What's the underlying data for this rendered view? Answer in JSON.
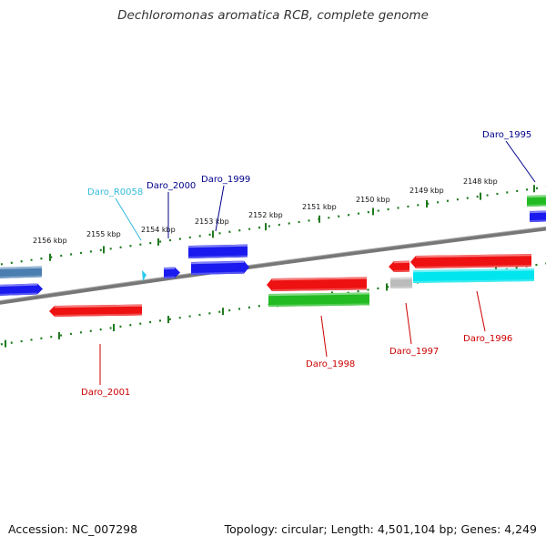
{
  "title": "Dechloromonas aromatica RCB, complete genome",
  "footer": {
    "accession": "Accession: NC_007298",
    "summary": "Topology: circular; Length: 4,501,104 bp; Genes: 4,249"
  },
  "colors": {
    "backbone": "#777777",
    "ruler": "#1f7a1f",
    "blue": "#1a1aee",
    "steel": "#4a7db0",
    "red": "#ee1111",
    "green": "#22bb22",
    "cyan": "#00e5ee",
    "gray": "#bbbbbb",
    "label_blue": "#00008b",
    "label_red": "#cc0000",
    "label_cyan": "#33bbdd"
  },
  "ruler": {
    "ticks": [
      "2156 kbp",
      "2155 kbp",
      "2154 kbp",
      "2153 kbp",
      "2152 kbp",
      "2151 kbp",
      "2150 kbp",
      "2149 kbp",
      "2148 kbp"
    ]
  },
  "genes": [
    {
      "id": "Daro_2001",
      "strand": "minus",
      "color": "red"
    },
    {
      "id": "Daro_R0058",
      "strand": "plus",
      "color": "cyan"
    },
    {
      "id": "Daro_2000",
      "strand": "plus",
      "color": "blue"
    },
    {
      "id": "Daro_1999",
      "strand": "plus",
      "color": "blue"
    },
    {
      "id": "Daro_1998",
      "strand": "minus",
      "color": "red"
    },
    {
      "id": "Daro_1997",
      "strand": "minus",
      "color": "red"
    },
    {
      "id": "Daro_1996",
      "strand": "minus",
      "color": "red"
    },
    {
      "id": "Daro_1995",
      "strand": "plus",
      "color": "green"
    }
  ]
}
